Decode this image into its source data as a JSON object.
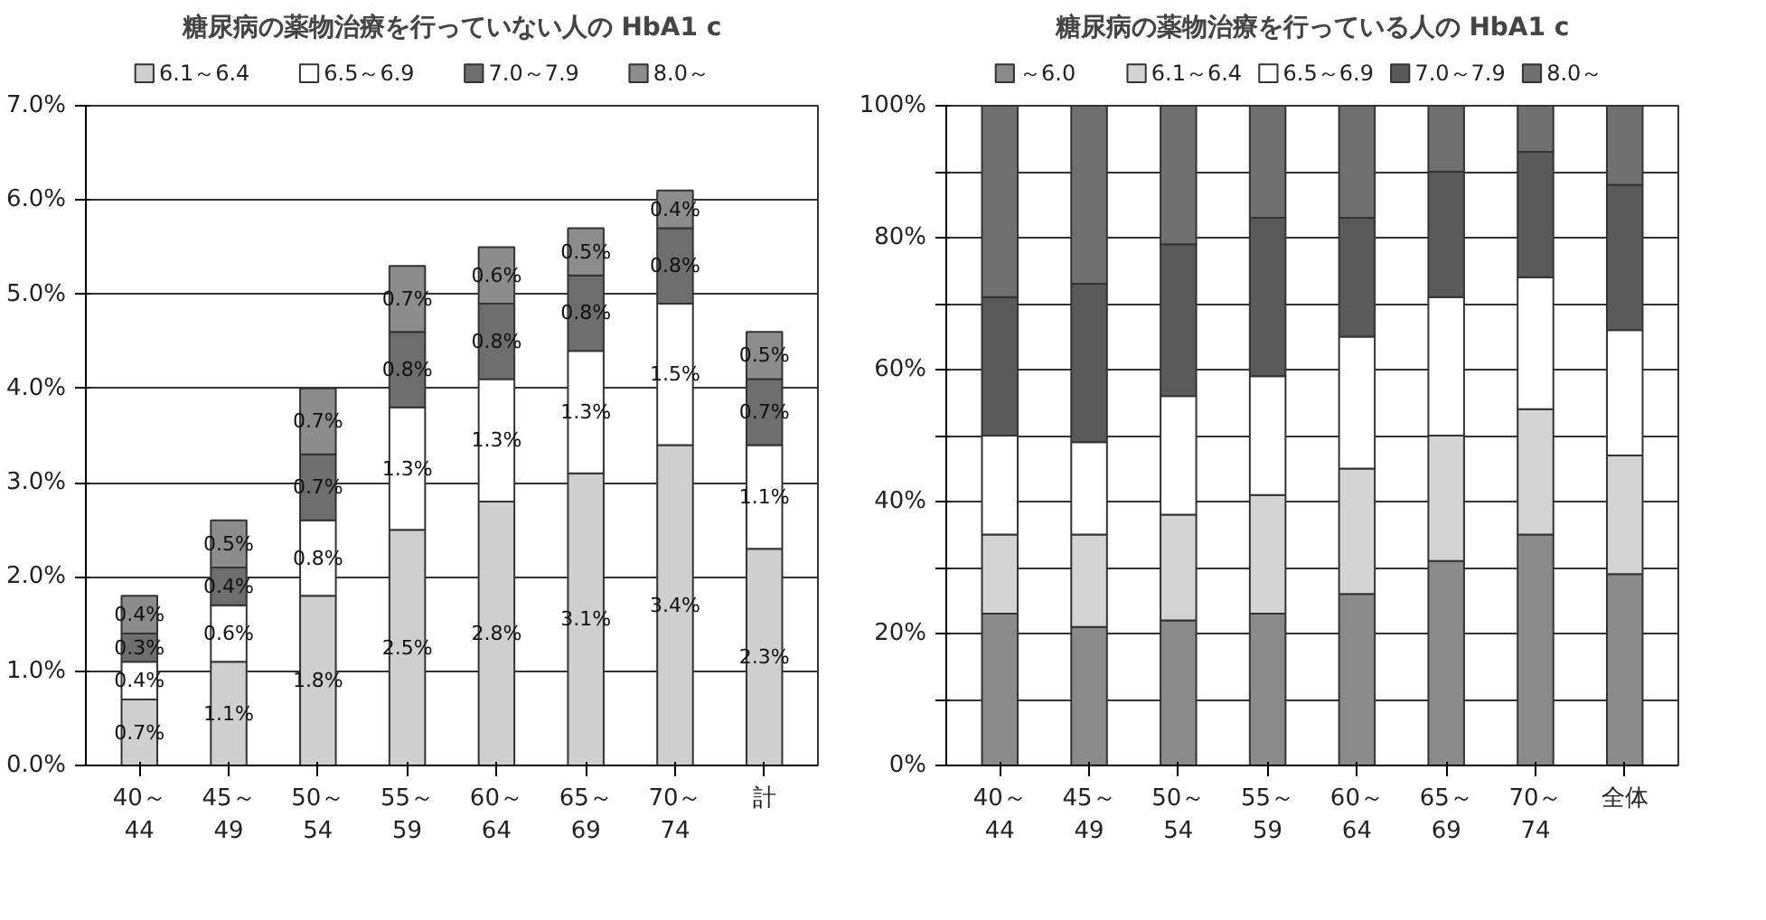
{
  "chart_data": [
    {
      "type": "bar",
      "stacked": true,
      "title": "糖尿病の薬物治療を行っていない人の HbA1 c",
      "categories": [
        "40～\n44",
        "45～\n49",
        "50～\n54",
        "55～\n59",
        "60～\n64",
        "65～\n69",
        "70～\n74",
        "計"
      ],
      "series": [
        {
          "name": "6.1～6.4",
          "color": "#cfcfcf",
          "values": [
            0.7,
            1.1,
            1.8,
            2.5,
            2.8,
            3.1,
            3.4,
            2.3
          ],
          "value_labels": [
            "0.7%",
            "1.1%",
            "1.8%",
            "2.5%",
            "2.8%",
            "3.1%",
            "3.4%",
            "2.3%"
          ]
        },
        {
          "name": "6.5～6.9",
          "color": "#ffffff",
          "values": [
            0.4,
            0.6,
            0.8,
            1.3,
            1.3,
            1.3,
            1.5,
            1.1
          ],
          "value_labels": [
            "0.4%",
            "0.6%",
            "0.8%",
            "1.3%",
            "1.3%",
            "1.3%",
            "1.5%",
            "1.1%"
          ]
        },
        {
          "name": "7.0～7.9",
          "color": "#6e6e6e",
          "values": [
            0.3,
            0.4,
            0.7,
            0.8,
            0.8,
            0.8,
            0.8,
            0.7
          ],
          "value_labels": [
            "0.3%",
            "0.4%",
            "0.7%",
            "0.8%",
            "0.8%",
            "0.8%",
            "0.8%",
            "0.7%"
          ]
        },
        {
          "name": "8.0～",
          "color": "#8c8c8c",
          "values": [
            0.4,
            0.5,
            0.7,
            0.7,
            0.6,
            0.5,
            0.4,
            0.5
          ],
          "value_labels": [
            "0.4%",
            "0.5%",
            "0.7%",
            "0.7%",
            "0.6%",
            "0.5%",
            "0.4%",
            "0.5%"
          ]
        }
      ],
      "ylim": [
        0,
        7
      ],
      "yticks": [
        {
          "value": 0,
          "label": "0.0%"
        },
        {
          "value": 1,
          "label": "1.0%"
        },
        {
          "value": 2,
          "label": "2.0%"
        },
        {
          "value": 3,
          "label": "3.0%"
        },
        {
          "value": 4,
          "label": "4.0%"
        },
        {
          "value": 5,
          "label": "5.0%"
        },
        {
          "value": 6,
          "label": "6.0%"
        },
        {
          "value": 7,
          "label": "7.0%"
        }
      ],
      "grid": "y",
      "legend": "top"
    },
    {
      "type": "bar",
      "stacked": true,
      "title": "糖尿病の薬物治療を行っている人の HbA1 c",
      "categories": [
        "40～\n44",
        "45～\n49",
        "50～\n54",
        "55～\n59",
        "60～\n64",
        "65～\n69",
        "70～\n74",
        "全体"
      ],
      "series": [
        {
          "name": "～6.0",
          "color": "#8a8a8a",
          "values": [
            23,
            21,
            22,
            23,
            26,
            31,
            35,
            29
          ]
        },
        {
          "name": "6.1～6.4",
          "color": "#d4d4d4",
          "values": [
            12,
            14,
            16,
            18,
            19,
            19,
            19,
            18
          ]
        },
        {
          "name": "6.5～6.9",
          "color": "#ffffff",
          "values": [
            15,
            14,
            18,
            18,
            20,
            21,
            20,
            19
          ]
        },
        {
          "name": "7.0～7.9",
          "color": "#5a5a5a",
          "values": [
            21,
            24,
            23,
            24,
            18,
            19,
            19,
            22
          ]
        },
        {
          "name": "8.0～",
          "color": "#707070",
          "values": [
            29,
            27,
            21,
            17,
            17,
            10,
            7,
            12
          ]
        }
      ],
      "ylim": [
        0,
        100
      ],
      "yticks": [
        {
          "value": 0,
          "label": "0%"
        },
        {
          "value": 10,
          "label": null
        },
        {
          "value": 20,
          "label": "20%"
        },
        {
          "value": 30,
          "label": null
        },
        {
          "value": 40,
          "label": "40%"
        },
        {
          "value": 50,
          "label": null
        },
        {
          "value": 60,
          "label": "60%"
        },
        {
          "value": 70,
          "label": null
        },
        {
          "value": 80,
          "label": "80%"
        },
        {
          "value": 90,
          "label": null
        },
        {
          "value": 100,
          "label": "100%"
        }
      ],
      "grid": "y",
      "legend": "top"
    }
  ]
}
